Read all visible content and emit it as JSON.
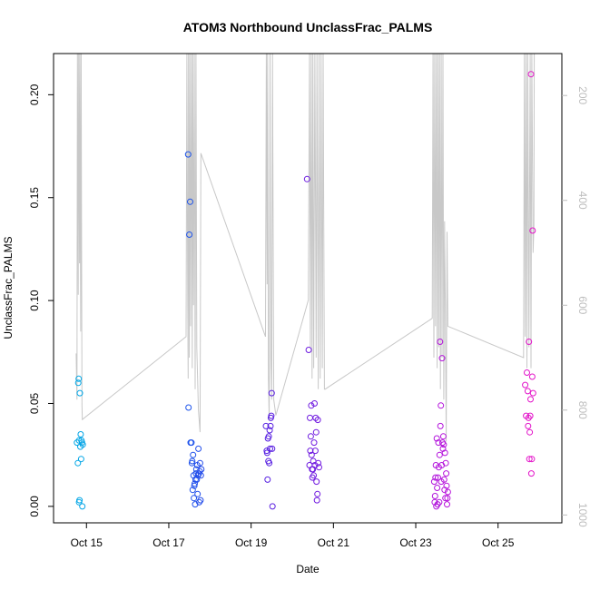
{
  "chart_data": {
    "type": "scatter",
    "title": "ATOM3 Northbound UnclassFrac_PALMS",
    "xlabel": "Date",
    "ylabel": "UnclassFrac_PALMS",
    "x_unit": "days (Oct, day of month)",
    "xlim": [
      14.2,
      26.55
    ],
    "ylim": [
      -0.008,
      0.22
    ],
    "x_ticks": [
      {
        "value": 15,
        "label": "Oct 15"
      },
      {
        "value": 17,
        "label": "Oct 17"
      },
      {
        "value": 19,
        "label": "Oct 19"
      },
      {
        "value": 21,
        "label": "Oct 21"
      },
      {
        "value": 23,
        "label": "Oct 23"
      },
      {
        "value": 25,
        "label": "Oct 25"
      }
    ],
    "y_ticks": [
      {
        "value": 0.0,
        "label": "0.00"
      },
      {
        "value": 0.05,
        "label": "0.05"
      },
      {
        "value": 0.1,
        "label": "0.10"
      },
      {
        "value": 0.15,
        "label": "0.15"
      },
      {
        "value": 0.2,
        "label": "0.20"
      }
    ],
    "y2_axis": {
      "description": "pressure (hPa), inverted",
      "lim": [
        1015,
        120
      ],
      "ticks": [
        {
          "value": 200,
          "label": "200"
        },
        {
          "value": 400,
          "label": "400"
        },
        {
          "value": 600,
          "label": "600"
        },
        {
          "value": 800,
          "label": "800"
        },
        {
          "value": 1000,
          "label": "1000"
        }
      ],
      "color": "#c8c8c8"
    },
    "grid": false,
    "legend": "none",
    "point_color_scale": "colour varies with date (cyan to blue to purple to magenta)",
    "profile_line": [
      [
        14.75,
        692
      ],
      [
        14.77,
        780
      ],
      [
        14.78,
        120
      ],
      [
        14.8,
        580
      ],
      [
        14.81,
        120
      ],
      [
        14.83,
        520
      ],
      [
        14.84,
        120
      ],
      [
        14.86,
        650
      ],
      [
        14.87,
        120
      ],
      [
        14.89,
        790
      ],
      [
        14.9,
        818
      ],
      [
        17.42,
        660
      ],
      [
        17.44,
        120
      ],
      [
        17.46,
        590
      ],
      [
        17.47,
        740
      ],
      [
        17.48,
        120
      ],
      [
        17.5,
        700
      ],
      [
        17.51,
        120
      ],
      [
        17.53,
        640
      ],
      [
        17.55,
        120
      ],
      [
        17.57,
        720
      ],
      [
        17.58,
        120
      ],
      [
        17.6,
        600
      ],
      [
        17.62,
        120
      ],
      [
        17.64,
        760
      ],
      [
        17.66,
        120
      ],
      [
        17.68,
        680
      ],
      [
        17.7,
        740
      ],
      [
        17.72,
        800
      ],
      [
        17.76,
        842
      ],
      [
        17.78,
        310
      ],
      [
        19.35,
        660
      ],
      [
        19.37,
        120
      ],
      [
        19.39,
        560
      ],
      [
        19.4,
        120
      ],
      [
        19.42,
        740
      ],
      [
        19.44,
        820
      ],
      [
        19.46,
        120
      ],
      [
        19.48,
        700
      ],
      [
        19.5,
        780
      ],
      [
        19.52,
        120
      ],
      [
        19.55,
        780
      ],
      [
        19.6,
        810
      ],
      [
        20.39,
        590
      ],
      [
        20.42,
        120
      ],
      [
        20.44,
        680
      ],
      [
        20.46,
        120
      ],
      [
        20.48,
        740
      ],
      [
        20.5,
        120
      ],
      [
        20.52,
        720
      ],
      [
        20.55,
        120
      ],
      [
        20.58,
        700
      ],
      [
        20.6,
        120
      ],
      [
        20.63,
        760
      ],
      [
        20.65,
        120
      ],
      [
        20.68,
        740
      ],
      [
        20.7,
        120
      ],
      [
        20.73,
        720
      ],
      [
        20.75,
        120
      ],
      [
        20.78,
        760
      ],
      [
        20.8,
        760
      ],
      [
        23.4,
        625
      ],
      [
        23.42,
        120
      ],
      [
        23.44,
        700
      ],
      [
        23.46,
        120
      ],
      [
        23.48,
        640
      ],
      [
        23.5,
        120
      ],
      [
        23.52,
        720
      ],
      [
        23.54,
        120
      ],
      [
        23.56,
        680
      ],
      [
        23.58,
        120
      ],
      [
        23.6,
        760
      ],
      [
        23.62,
        120
      ],
      [
        23.64,
        700
      ],
      [
        23.66,
        120
      ],
      [
        23.68,
        780
      ],
      [
        23.7,
        440
      ],
      [
        23.72,
        620
      ],
      [
        23.74,
        860
      ],
      [
        23.76,
        460
      ],
      [
        23.78,
        640
      ],
      [
        25.62,
        700
      ],
      [
        25.64,
        120
      ],
      [
        25.66,
        660
      ],
      [
        25.68,
        120
      ],
      [
        25.7,
        720
      ],
      [
        25.72,
        120
      ],
      [
        25.75,
        680
      ],
      [
        25.78,
        120
      ],
      [
        25.8,
        720
      ],
      [
        25.82,
        120
      ],
      [
        25.85,
        500
      ],
      [
        25.87,
        450
      ],
      [
        25.88,
        120
      ]
    ],
    "series": [
      {
        "points": [
          [
            14.77,
            0.031
          ],
          [
            14.79,
            0.021
          ],
          [
            14.8,
            0.06
          ],
          [
            14.81,
            0.062
          ],
          [
            14.82,
            0.032
          ],
          [
            14.82,
            0.002
          ],
          [
            14.83,
            0.003
          ],
          [
            14.84,
            0.055
          ],
          [
            14.85,
            0.029
          ],
          [
            14.86,
            0.035
          ],
          [
            14.87,
            0.023
          ],
          [
            14.88,
            0.032
          ],
          [
            14.89,
            0.031
          ],
          [
            14.9,
            0.0
          ],
          [
            14.91,
            0.03
          ],
          [
            17.47,
            0.171
          ],
          [
            17.48,
            0.048
          ],
          [
            17.5,
            0.132
          ],
          [
            17.52,
            0.148
          ],
          [
            17.53,
            0.031
          ],
          [
            17.55,
            0.031
          ],
          [
            17.56,
            0.021
          ],
          [
            17.57,
            0.022
          ],
          [
            17.58,
            0.008
          ],
          [
            17.59,
            0.025
          ],
          [
            17.6,
            0.015
          ],
          [
            17.61,
            0.004
          ],
          [
            17.62,
            0.01
          ],
          [
            17.63,
            0.011
          ],
          [
            17.64,
            0.001
          ],
          [
            17.65,
            0.013
          ],
          [
            17.66,
            0.016
          ],
          [
            17.67,
            0.018
          ],
          [
            17.68,
            0.013
          ],
          [
            17.69,
            0.02
          ],
          [
            17.7,
            0.006
          ],
          [
            17.71,
            0.015
          ],
          [
            17.72,
            0.028
          ],
          [
            17.73,
            0.016
          ],
          [
            17.74,
            0.002
          ],
          [
            17.75,
            0.017
          ],
          [
            17.76,
            0.021
          ],
          [
            17.77,
            0.003
          ],
          [
            17.78,
            0.015
          ],
          [
            17.79,
            0.018
          ],
          [
            19.36,
            0.039
          ],
          [
            19.38,
            0.027
          ],
          [
            19.39,
            0.026
          ],
          [
            19.4,
            0.013
          ],
          [
            19.41,
            0.033
          ],
          [
            19.42,
            0.022
          ],
          [
            19.43,
            0.034
          ],
          [
            19.44,
            0.021
          ],
          [
            19.45,
            0.037
          ],
          [
            19.46,
            0.028
          ],
          [
            19.47,
            0.039
          ],
          [
            19.48,
            0.043
          ],
          [
            19.49,
            0.044
          ],
          [
            19.5,
            0.055
          ],
          [
            19.51,
            0.028
          ],
          [
            19.52,
            0.0
          ],
          [
            20.36,
            0.159
          ],
          [
            20.4,
            0.076
          ],
          [
            20.42,
            0.02
          ],
          [
            20.43,
            0.043
          ],
          [
            20.44,
            0.027
          ],
          [
            20.45,
            0.034
          ],
          [
            20.46,
            0.049
          ],
          [
            20.47,
            0.025
          ],
          [
            20.48,
            0.018
          ],
          [
            20.49,
            0.014
          ],
          [
            20.5,
            0.018
          ],
          [
            20.51,
            0.022
          ],
          [
            20.52,
            0.015
          ],
          [
            20.53,
            0.031
          ],
          [
            20.54,
            0.05
          ],
          [
            20.55,
            0.02
          ],
          [
            20.56,
            0.027
          ],
          [
            20.57,
            0.043
          ],
          [
            20.58,
            0.036
          ],
          [
            20.59,
            0.012
          ],
          [
            20.6,
            0.003
          ],
          [
            20.61,
            0.006
          ],
          [
            20.62,
            0.042
          ],
          [
            20.63,
            0.021
          ],
          [
            20.65,
            0.019
          ],
          [
            23.45,
            0.012
          ],
          [
            23.46,
            0.002
          ],
          [
            23.47,
            0.005
          ],
          [
            23.48,
            0.014
          ],
          [
            23.49,
            0.02
          ],
          [
            23.5,
            0.0
          ],
          [
            23.51,
            0.033
          ],
          [
            23.52,
            0.009
          ],
          [
            23.53,
            0.001
          ],
          [
            23.54,
            0.014
          ],
          [
            23.55,
            0.031
          ],
          [
            23.56,
            0.019
          ],
          [
            23.57,
            0.002
          ],
          [
            23.58,
            0.025
          ],
          [
            23.59,
            0.08
          ],
          [
            23.6,
            0.039
          ],
          [
            23.61,
            0.049
          ],
          [
            23.62,
            0.012
          ],
          [
            23.63,
            0.02
          ],
          [
            23.64,
            0.072
          ],
          [
            23.65,
            0.031
          ],
          [
            23.66,
            0.028
          ],
          [
            23.67,
            0.034
          ],
          [
            23.68,
            0.03
          ],
          [
            23.69,
            0.013
          ],
          [
            23.7,
            0.008
          ],
          [
            23.71,
            0.026
          ],
          [
            23.72,
            0.004
          ],
          [
            23.73,
            0.021
          ],
          [
            23.74,
            0.016
          ],
          [
            23.75,
            0.01
          ],
          [
            23.76,
            0.001
          ],
          [
            23.77,
            0.004
          ],
          [
            23.78,
            0.007
          ],
          [
            25.66,
            0.059
          ],
          [
            25.68,
            0.044
          ],
          [
            25.7,
            0.065
          ],
          [
            25.72,
            0.056
          ],
          [
            25.73,
            0.039
          ],
          [
            25.74,
            0.043
          ],
          [
            25.75,
            0.08
          ],
          [
            25.76,
            0.023
          ],
          [
            25.77,
            0.036
          ],
          [
            25.78,
            0.044
          ],
          [
            25.79,
            0.052
          ],
          [
            25.8,
            0.21
          ],
          [
            25.81,
            0.016
          ],
          [
            25.82,
            0.023
          ],
          [
            25.83,
            0.063
          ],
          [
            25.84,
            0.134
          ],
          [
            25.85,
            0.055
          ]
        ]
      }
    ]
  }
}
